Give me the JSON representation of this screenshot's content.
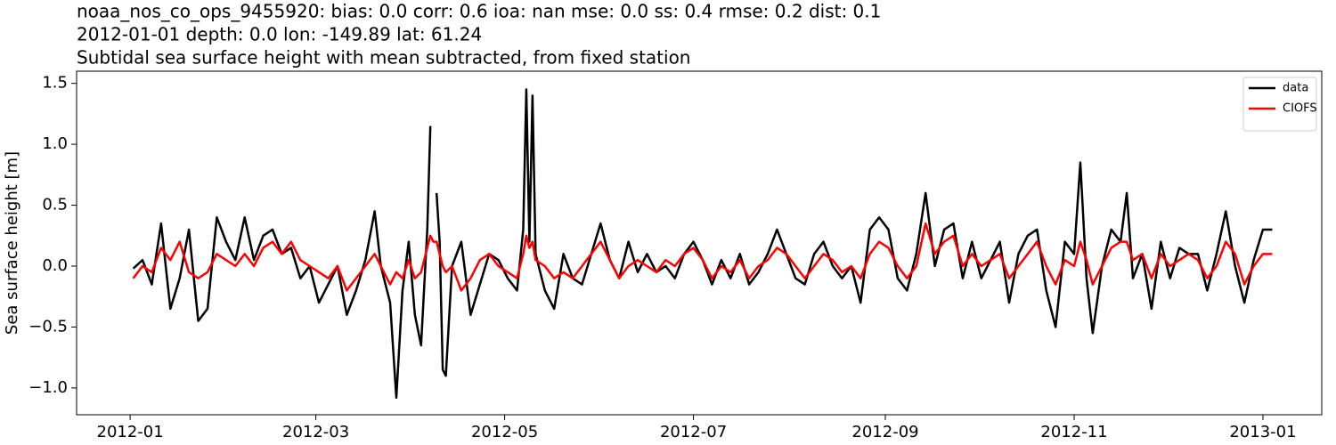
{
  "chart_data": {
    "type": "line",
    "title": [
      "noaa_nos_co_ops_9455920: bias: 0.0  corr: 0.6  ioa: nan  mse: 0.0  ss: 0.4  rmse: 0.2  dist: 0.1",
      "2012-01-01 depth: 0.0 lon: -149.89 lat: 61.24",
      "Subtidal sea surface height with mean subtracted, from fixed station"
    ],
    "y_label": "Sea surface height [m]",
    "x": [
      1,
      4,
      7,
      10,
      13,
      16,
      19,
      22,
      25,
      28,
      31,
      34,
      37,
      40,
      43,
      46,
      49,
      52,
      55,
      58,
      61,
      64,
      67,
      70,
      73,
      76,
      79,
      81,
      84,
      86,
      88,
      90,
      92,
      94,
      96,
      97,
      98,
      99,
      100,
      101,
      102,
      104,
      107,
      110,
      113,
      116,
      119,
      122,
      125,
      127,
      128,
      129,
      130,
      131,
      134,
      137,
      140,
      143,
      146,
      149,
      152,
      155,
      158,
      161,
      164,
      167,
      170,
      173,
      176,
      179,
      182,
      185,
      188,
      191,
      194,
      197,
      200,
      203,
      206,
      209,
      212,
      215,
      218,
      221,
      224,
      227,
      230,
      233,
      236,
      239,
      242,
      245,
      248,
      251,
      254,
      257,
      260,
      263,
      266,
      269,
      272,
      275,
      278,
      281,
      284,
      287,
      290,
      293,
      296,
      299,
      302,
      305,
      307,
      309,
      311,
      314,
      317,
      320,
      322,
      324,
      327,
      330,
      333,
      336,
      339,
      342,
      345,
      348,
      351,
      354,
      357,
      360,
      363,
      366,
      369
    ],
    "series": [
      {
        "name": "data",
        "color": "#000000",
        "values": [
          -0.02,
          0.05,
          -0.15,
          0.35,
          -0.35,
          -0.1,
          0.3,
          -0.45,
          -0.35,
          0.4,
          0.2,
          0.05,
          0.4,
          0.05,
          0.25,
          0.3,
          0.1,
          0.15,
          -0.1,
          0.0,
          -0.3,
          -0.15,
          0.0,
          -0.4,
          -0.2,
          0.05,
          0.45,
          0.0,
          -0.3,
          -1.08,
          -0.2,
          0.2,
          -0.4,
          -0.65,
          0.3,
          1.15,
          null,
          0.6,
          0.2,
          -0.85,
          -0.9,
          0.0,
          0.2,
          -0.4,
          -0.15,
          0.1,
          0.05,
          -0.1,
          -0.2,
          0.3,
          1.45,
          0.2,
          1.4,
          0.1,
          -0.2,
          -0.35,
          0.1,
          -0.1,
          -0.15,
          0.1,
          0.35,
          0.05,
          -0.1,
          0.2,
          -0.05,
          0.1,
          -0.05,
          0.0,
          -0.1,
          0.1,
          0.2,
          0.05,
          -0.15,
          0.05,
          -0.1,
          0.1,
          -0.15,
          -0.05,
          0.1,
          0.3,
          0.1,
          -0.1,
          -0.15,
          0.1,
          0.2,
          0.0,
          -0.1,
          0.0,
          -0.3,
          0.3,
          0.4,
          0.3,
          -0.1,
          -0.2,
          0.1,
          0.6,
          0.0,
          0.3,
          0.35,
          -0.1,
          0.2,
          -0.1,
          0.05,
          0.2,
          -0.3,
          0.1,
          0.25,
          0.3,
          -0.2,
          -0.5,
          0.2,
          0.1,
          0.85,
          -0.1,
          -0.55,
          0.0,
          0.3,
          0.2,
          0.6,
          -0.1,
          0.1,
          -0.35,
          0.2,
          -0.1,
          0.15,
          0.1,
          0.1,
          -0.2,
          0.1,
          0.45,
          0.0,
          -0.3,
          0.05,
          0.3,
          0.3
        ]
      },
      {
        "name": "CIOFS",
        "color": "#ff0000",
        "values": [
          -0.1,
          0.0,
          -0.05,
          0.15,
          0.05,
          0.2,
          -0.05,
          -0.1,
          -0.05,
          0.1,
          0.05,
          0.0,
          0.1,
          0.0,
          0.15,
          0.2,
          0.1,
          0.2,
          0.05,
          0.0,
          -0.05,
          -0.1,
          0.0,
          -0.2,
          -0.1,
          0.0,
          0.1,
          0.0,
          -0.15,
          -0.05,
          -0.1,
          0.05,
          -0.1,
          -0.05,
          0.15,
          0.25,
          0.2,
          0.2,
          0.1,
          0.0,
          -0.05,
          0.0,
          -0.2,
          -0.1,
          0.05,
          0.1,
          0.0,
          -0.05,
          -0.1,
          0.1,
          0.25,
          0.15,
          0.2,
          0.05,
          0.0,
          -0.1,
          -0.05,
          -0.1,
          0.0,
          0.1,
          0.2,
          0.05,
          -0.1,
          0.0,
          0.05,
          0.0,
          -0.05,
          0.05,
          0.0,
          0.1,
          0.15,
          0.05,
          -0.1,
          0.0,
          -0.05,
          0.05,
          -0.1,
          0.0,
          0.05,
          0.15,
          0.1,
          0.0,
          -0.1,
          0.0,
          0.1,
          0.05,
          -0.05,
          0.0,
          -0.1,
          0.1,
          0.2,
          0.15,
          0.0,
          -0.1,
          0.0,
          0.35,
          0.1,
          0.2,
          0.25,
          0.0,
          0.1,
          0.0,
          0.05,
          0.1,
          -0.1,
          0.0,
          0.1,
          0.2,
          0.0,
          -0.15,
          0.05,
          0.0,
          0.2,
          0.05,
          -0.15,
          0.0,
          0.15,
          0.2,
          0.2,
          0.05,
          0.1,
          -0.1,
          0.1,
          0.0,
          0.05,
          0.1,
          0.05,
          -0.1,
          0.0,
          0.2,
          0.1,
          -0.15,
          0.0,
          0.1,
          0.1
        ]
      }
    ],
    "xlim": [
      -17.3,
      385
    ],
    "xticks": [
      {
        "value": 0,
        "label": "2012-01"
      },
      {
        "value": 60,
        "label": "2012-03"
      },
      {
        "value": 121,
        "label": "2012-05"
      },
      {
        "value": 182,
        "label": "2012-07"
      },
      {
        "value": 244,
        "label": "2012-09"
      },
      {
        "value": 305,
        "label": "2012-11"
      },
      {
        "value": 366,
        "label": "2013-01"
      }
    ],
    "ylim": [
      -1.22,
      1.6
    ],
    "yticks": [
      {
        "value": -1.0,
        "label": "−1.0"
      },
      {
        "value": -0.5,
        "label": "−0.5"
      },
      {
        "value": 0.0,
        "label": "0.0"
      },
      0.5,
      {
        "value": 1.0,
        "label": "1.0"
      },
      1.5
    ],
    "legend": "upper right"
  }
}
